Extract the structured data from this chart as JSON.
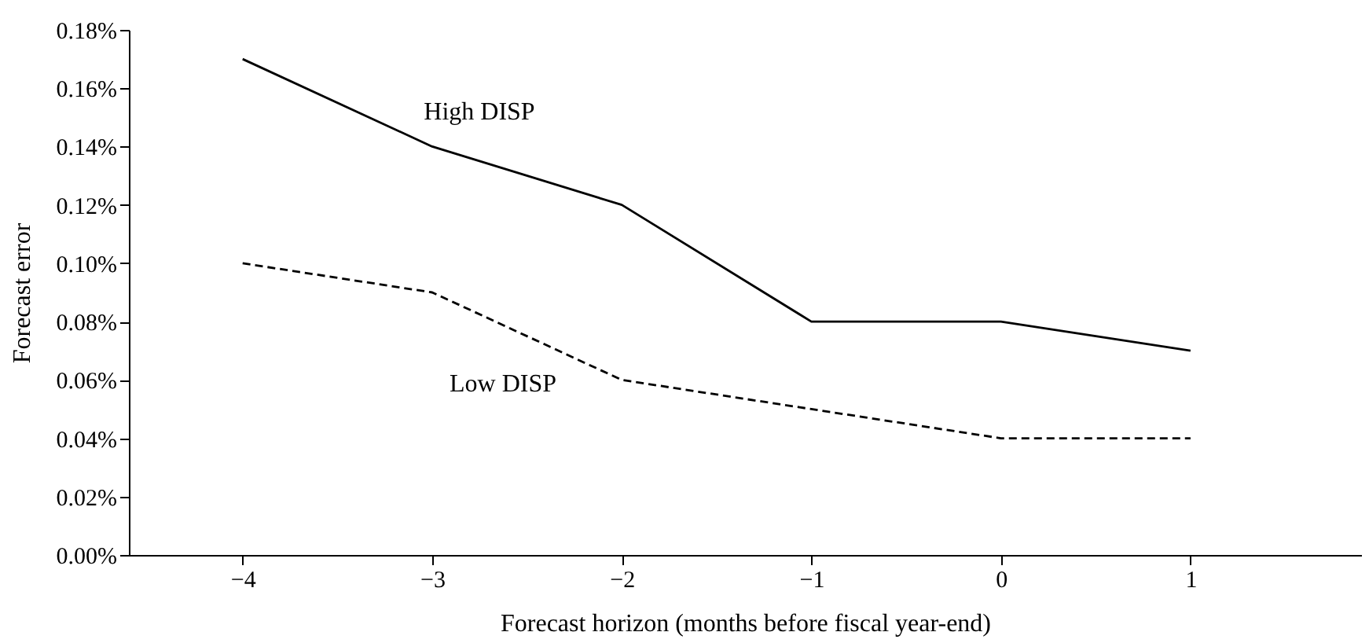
{
  "chart_data": {
    "type": "line",
    "xlabel": "Forecast horizon (months before fiscal year-end)",
    "ylabel": "Forecast error",
    "x": [
      -4,
      -3,
      -2,
      -1,
      0,
      1
    ],
    "series": [
      {
        "name": "High DISP",
        "color": "#000000",
        "line_style": "solid",
        "values": [
          0.17,
          0.14,
          0.12,
          0.08,
          0.08,
          0.07
        ]
      },
      {
        "name": "Low DISP",
        "color": "#000000",
        "line_style": "dashed",
        "values": [
          0.1,
          0.09,
          0.06,
          0.05,
          0.04,
          0.04
        ]
      }
    ],
    "xlim": [
      -4.6,
      1.9
    ],
    "xticks": [
      {
        "value": -4,
        "label": "−4"
      },
      {
        "value": -3,
        "label": "−3"
      },
      {
        "value": -2,
        "label": "−2"
      },
      {
        "value": -1,
        "label": "−1"
      },
      0,
      1
    ],
    "ylim": [
      0,
      0.18
    ],
    "yticks": [
      {
        "value": 0,
        "label": "0.00%"
      },
      {
        "value": 0.02,
        "label": "0.02%"
      },
      {
        "value": 0.04,
        "label": "0.04%"
      },
      {
        "value": 0.06,
        "label": "0.06%"
      },
      {
        "value": 0.08,
        "label": "0.08%"
      },
      {
        "value": 0.1,
        "label": "0.10%"
      },
      {
        "value": 0.12,
        "label": "0.12%"
      },
      {
        "value": 0.14,
        "label": "0.14%"
      },
      {
        "value": 0.16,
        "label": "0.16%"
      },
      {
        "value": 0.18,
        "label": "0.18%"
      }
    ],
    "grid": false,
    "marker": "none"
  }
}
